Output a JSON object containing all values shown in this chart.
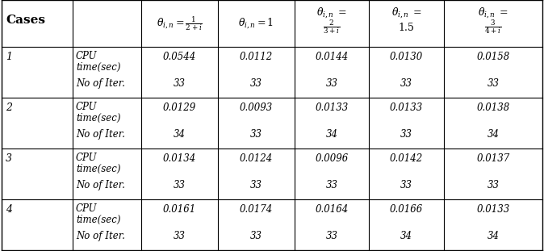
{
  "cases": [
    "1",
    "2",
    "3",
    "4"
  ],
  "cpu_values": [
    [
      "0.0544",
      "0.0112",
      "0.0144",
      "0.0130",
      "0.0158"
    ],
    [
      "0.0129",
      "0.0093",
      "0.0133",
      "0.0133",
      "0.0138"
    ],
    [
      "0.0134",
      "0.0124",
      "0.0096",
      "0.0142",
      "0.0137"
    ],
    [
      "0.0161",
      "0.0174",
      "0.0164",
      "0.0166",
      "0.0133"
    ]
  ],
  "iter_values": [
    [
      "33",
      "33",
      "33",
      "33",
      "33"
    ],
    [
      "34",
      "33",
      "34",
      "33",
      "34"
    ],
    [
      "33",
      "33",
      "33",
      "33",
      "33"
    ],
    [
      "33",
      "33",
      "33",
      "34",
      "34"
    ]
  ],
  "background_color": "#ffffff",
  "line_color": "#000000",
  "text_color": "#000000",
  "cases_bold_size": 11,
  "header_math_size": 9,
  "data_size": 8.5
}
